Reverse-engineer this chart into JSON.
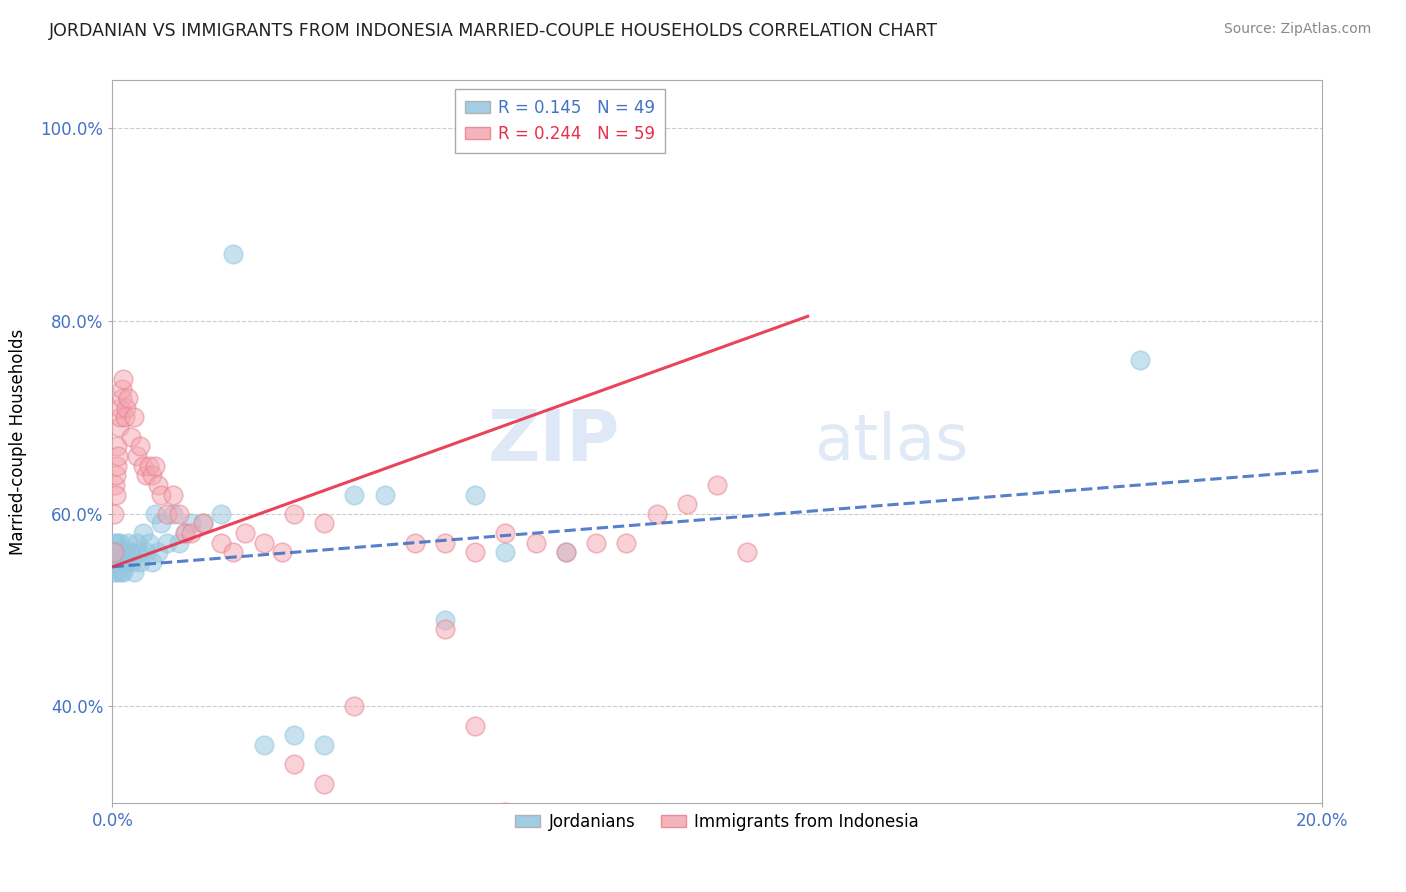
{
  "title": "JORDANIAN VS IMMIGRANTS FROM INDONESIA MARRIED-COUPLE HOUSEHOLDS CORRELATION CHART",
  "source": "Source: ZipAtlas.com",
  "ylabel": "Married-couple Households",
  "legend_entry1": "R = 0.145   N = 49",
  "legend_entry2": "R = 0.244   N = 59",
  "legend_label1": "Jordanians",
  "legend_label2": "Immigrants from Indonesia",
  "color_jordan": "#92c5de",
  "color_indonesia": "#f4a6b0",
  "color_jordan_line": "#4472c4",
  "color_indonesia_line": "#e8304a",
  "watermark_zip": "ZIP",
  "watermark_atlas": "atlas",
  "xlim": [
    0.0,
    0.2
  ],
  "ylim": [
    0.3,
    1.05
  ],
  "y_tick_vals": [
    0.4,
    0.6,
    0.8,
    1.0
  ],
  "jordanians_x": [
    0.0002,
    0.0003,
    0.0004,
    0.0005,
    0.0006,
    0.0007,
    0.0008,
    0.0009,
    0.001,
    0.0012,
    0.0013,
    0.0014,
    0.0015,
    0.0016,
    0.0018,
    0.002,
    0.0022,
    0.0025,
    0.003,
    0.0032,
    0.0035,
    0.004,
    0.0042,
    0.0045,
    0.005,
    0.0055,
    0.006,
    0.0065,
    0.007,
    0.0075,
    0.008,
    0.009,
    0.01,
    0.011,
    0.012,
    0.013,
    0.015,
    0.018,
    0.02,
    0.025,
    0.03,
    0.035,
    0.04,
    0.045,
    0.055,
    0.06,
    0.065,
    0.075,
    0.17
  ],
  "jordanians_y": [
    0.54,
    0.56,
    0.57,
    0.55,
    0.56,
    0.54,
    0.57,
    0.55,
    0.56,
    0.55,
    0.57,
    0.54,
    0.56,
    0.55,
    0.54,
    0.56,
    0.55,
    0.57,
    0.56,
    0.55,
    0.54,
    0.57,
    0.56,
    0.55,
    0.58,
    0.56,
    0.57,
    0.55,
    0.6,
    0.56,
    0.59,
    0.57,
    0.6,
    0.57,
    0.58,
    0.59,
    0.59,
    0.6,
    0.87,
    0.36,
    0.37,
    0.36,
    0.62,
    0.62,
    0.49,
    0.62,
    0.56,
    0.56,
    0.76
  ],
  "indonesia_x": [
    0.0002,
    0.0003,
    0.0004,
    0.0005,
    0.0006,
    0.0007,
    0.0008,
    0.0009,
    0.001,
    0.0012,
    0.0013,
    0.0015,
    0.0016,
    0.0018,
    0.002,
    0.0022,
    0.0025,
    0.003,
    0.0035,
    0.004,
    0.0045,
    0.005,
    0.0055,
    0.006,
    0.0065,
    0.007,
    0.0075,
    0.008,
    0.009,
    0.01,
    0.011,
    0.012,
    0.013,
    0.015,
    0.018,
    0.02,
    0.022,
    0.025,
    0.028,
    0.03,
    0.035,
    0.04,
    0.05,
    0.055,
    0.06,
    0.065,
    0.07,
    0.075,
    0.08,
    0.085,
    0.09,
    0.095,
    0.1,
    0.105,
    0.03,
    0.035,
    0.055,
    0.06,
    0.065
  ],
  "indonesia_y": [
    0.56,
    0.6,
    0.63,
    0.62,
    0.64,
    0.65,
    0.67,
    0.66,
    0.69,
    0.7,
    0.71,
    0.72,
    0.73,
    0.74,
    0.7,
    0.71,
    0.72,
    0.68,
    0.7,
    0.66,
    0.67,
    0.65,
    0.64,
    0.65,
    0.64,
    0.65,
    0.63,
    0.62,
    0.6,
    0.62,
    0.6,
    0.58,
    0.58,
    0.59,
    0.57,
    0.56,
    0.58,
    0.57,
    0.56,
    0.6,
    0.59,
    0.4,
    0.57,
    0.57,
    0.56,
    0.58,
    0.57,
    0.56,
    0.57,
    0.57,
    0.6,
    0.61,
    0.63,
    0.56,
    0.34,
    0.32,
    0.48,
    0.38,
    0.29
  ],
  "jordan_line_x": [
    0.0,
    0.2
  ],
  "jordan_line_y": [
    0.545,
    0.645
  ],
  "indonesia_line_x": [
    0.0,
    0.115
  ],
  "indonesia_line_y": [
    0.545,
    0.805
  ]
}
